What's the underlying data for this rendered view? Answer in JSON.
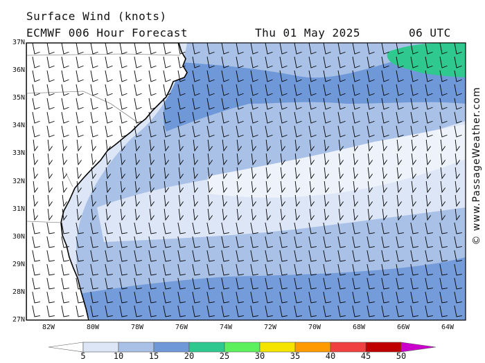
{
  "header": {
    "title": "Surface Wind (knots)",
    "model": "ECMWF 006 Hour Forecast",
    "date": "Thu 01 May 2025",
    "time": "06 UTC"
  },
  "credit": "© www.PassageWeather.com",
  "axes": {
    "lat_labels": [
      "37N",
      "36N",
      "35N",
      "34N",
      "33N",
      "32N",
      "31N",
      "30N",
      "29N",
      "28N",
      "27N"
    ],
    "lon_labels": [
      "82W",
      "80W",
      "78W",
      "76W",
      "74W",
      "72W",
      "70W",
      "68W",
      "66W",
      "64W"
    ]
  },
  "legend": {
    "values": [
      "5",
      "10",
      "15",
      "20",
      "25",
      "30",
      "35",
      "40",
      "45",
      "50"
    ],
    "colors": [
      "#ffffff",
      "#dde6f6",
      "#a9c1e6",
      "#6f98d8",
      "#2fc98f",
      "#5cf05c",
      "#f5e400",
      "#ff9b00",
      "#f04040",
      "#c00000",
      "#cc00cc"
    ]
  },
  "colors": {
    "land": "#ffffff",
    "calm_band": "#eef2fb",
    "band_10": "#dde6f6",
    "band_15": "#a9c1e6",
    "band_20": "#6f98d8",
    "band_25": "#2fc98f",
    "coast": "#000000",
    "border": "#8a8a8a"
  }
}
